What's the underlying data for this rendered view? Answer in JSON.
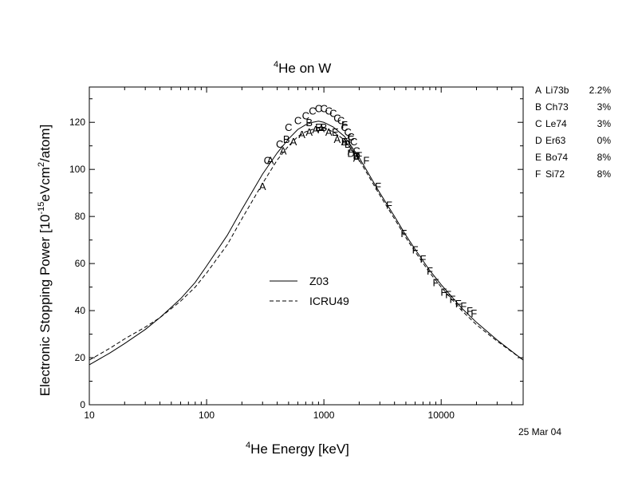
{
  "chart_data": {
    "type": "line",
    "title": {
      "sup": "4",
      "main": "He on W"
    },
    "xlabel": {
      "sup": "4",
      "main": "He Energy [keV]"
    },
    "ylabel": {
      "pre": "Electronic Stopping Power [10",
      "sup1": "-15",
      "mid": "eVcm",
      "sup2": "2",
      "post": "/atom]"
    },
    "x_scale": "log",
    "xlim": [
      10,
      50000
    ],
    "ylim": [
      0,
      135
    ],
    "x_ticks": [
      10,
      100,
      1000,
      10000
    ],
    "x_tick_labels": [
      "10",
      "100",
      "1000",
      "10000"
    ],
    "y_ticks": [
      0,
      20,
      40,
      60,
      80,
      100,
      120
    ],
    "y_tick_labels": [
      "0",
      "20",
      "40",
      "60",
      "80",
      "100",
      "120"
    ],
    "grid": false,
    "legend_position": "center-left",
    "series": [
      {
        "name": "Z03",
        "style": "solid",
        "x": [
          10,
          15,
          20,
          30,
          40,
          60,
          80,
          100,
          150,
          200,
          300,
          400,
          500,
          600,
          700,
          800,
          900,
          1000,
          1200,
          1500,
          2000,
          3000,
          4000,
          5000,
          6000,
          8000,
          10000,
          15000,
          20000,
          30000,
          50000
        ],
        "y": [
          17,
          22,
          26,
          32,
          37,
          45,
          52,
          59,
          72,
          83,
          98,
          107,
          113,
          117,
          119,
          120,
          120.5,
          120,
          118,
          114,
          105,
          90,
          80,
          72,
          66,
          57,
          51,
          41,
          35,
          27.5,
          19
        ]
      },
      {
        "name": "ICRU49",
        "style": "dashed",
        "x": [
          10,
          15,
          20,
          30,
          40,
          60,
          80,
          100,
          150,
          200,
          300,
          400,
          500,
          600,
          700,
          800,
          900,
          1000,
          1200,
          1500,
          2000,
          3000,
          4000,
          5000,
          6000,
          8000,
          10000,
          15000,
          20000,
          30000,
          50000
        ],
        "y": [
          19,
          24,
          28,
          33,
          37,
          44,
          50,
          56,
          68,
          79,
          94,
          104,
          110,
          114,
          116,
          117,
          117.5,
          117.5,
          116,
          112.5,
          104,
          89,
          79,
          71,
          65,
          56,
          50,
          40,
          34,
          27,
          19
        ]
      }
    ],
    "measurements": [
      {
        "ref": "A",
        "label": "Li73b",
        "uncertainty": "2.2%",
        "points": [
          [
            300,
            93
          ],
          [
            350,
            104
          ],
          [
            450,
            108
          ],
          [
            550,
            112
          ],
          [
            650,
            115
          ],
          [
            750,
            116
          ],
          [
            850,
            117
          ],
          [
            950,
            117.5
          ],
          [
            1100,
            116
          ],
          [
            1300,
            113
          ],
          [
            1500,
            112
          ],
          [
            1700,
            108
          ],
          [
            1900,
            105
          ]
        ]
      },
      {
        "ref": "B",
        "label": "Ch73",
        "uncertainty": "3%",
        "points": [
          [
            480,
            113
          ],
          [
            750,
            120
          ],
          [
            1000,
            118
          ],
          [
            1600,
            111
          ],
          [
            1900,
            106
          ]
        ]
      },
      {
        "ref": "C",
        "label": "Le74",
        "uncertainty": "3%",
        "points": [
          [
            330,
            104
          ],
          [
            420,
            111
          ],
          [
            500,
            118
          ],
          [
            600,
            121
          ],
          [
            700,
            123
          ],
          [
            800,
            125
          ],
          [
            900,
            126
          ],
          [
            1000,
            126
          ],
          [
            1100,
            125
          ],
          [
            1200,
            124
          ],
          [
            1300,
            122
          ],
          [
            1400,
            121
          ],
          [
            1500,
            118
          ],
          [
            1600,
            116
          ],
          [
            1700,
            114
          ],
          [
            1800,
            112
          ],
          [
            1900,
            108
          ]
        ]
      },
      {
        "ref": "D",
        "label": "Er63",
        "uncertainty": "0%",
        "points": [
          [
            1700,
            107
          ],
          [
            1900,
            106
          ]
        ]
      },
      {
        "ref": "E",
        "label": "Bo74",
        "uncertainty": "8%",
        "points": [
          [
            900,
            118
          ],
          [
            1250,
            116
          ],
          [
            1500,
            112
          ]
        ]
      },
      {
        "ref": "F",
        "label": "Si72",
        "uncertainty": "8%",
        "points": [
          [
            1500,
            119
          ],
          [
            1700,
            113
          ],
          [
            2000,
            106
          ],
          [
            2300,
            104
          ],
          [
            2900,
            93
          ],
          [
            3600,
            85
          ],
          [
            4800,
            73
          ],
          [
            6000,
            66
          ],
          [
            7000,
            62
          ],
          [
            8000,
            57
          ],
          [
            9000,
            52
          ],
          [
            10500,
            48
          ],
          [
            11500,
            47
          ],
          [
            12500,
            45
          ],
          [
            14000,
            43
          ],
          [
            15500,
            42
          ],
          [
            17500,
            40
          ],
          [
            19000,
            39
          ]
        ]
      }
    ],
    "date_note": "25 Mar 04"
  }
}
